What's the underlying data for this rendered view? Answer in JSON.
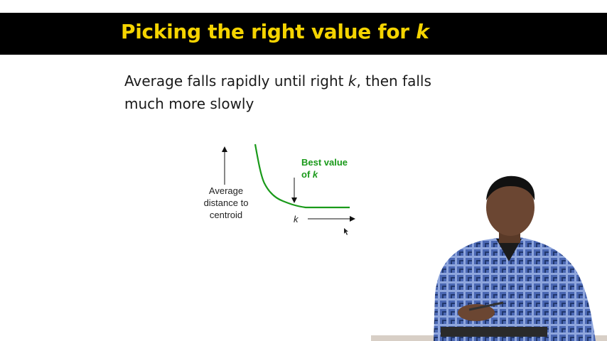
{
  "slide": {
    "title": "Picking the right value for",
    "title_var": "k",
    "bullet_line1_a": "Average falls rapidly until right ",
    "bullet_line1_var": "k",
    "bullet_line1_b": ", then falls",
    "bullet_line2": "much more slowly"
  },
  "diagram": {
    "ylabel_1": "Average",
    "ylabel_2": "distance to",
    "ylabel_3": "centroid",
    "best_1": "Best value",
    "best_2": "of ",
    "best_var": "k",
    "xlabel": "k"
  },
  "colors": {
    "title_bar": "#000000",
    "title_text": "#f5d400",
    "curve": "#1a9a1a",
    "shirt": "#4a67b3"
  }
}
